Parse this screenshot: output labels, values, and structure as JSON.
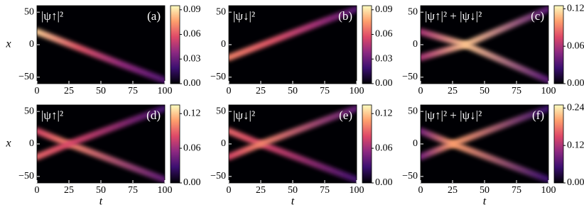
{
  "chart_data": [
    {
      "type": "heatmap",
      "label": "(a)",
      "formula": "|ψ↑|²",
      "ylabel": "x",
      "xlim": [
        0,
        100
      ],
      "xticks": [
        0,
        25,
        50,
        75,
        100
      ],
      "ylim": [
        -60,
        60
      ],
      "yticks": [
        {
          "value": -50,
          "label": "−50"
        },
        0,
        50
      ],
      "clim": [
        0,
        0.095
      ],
      "cticks": [
        {
          "value": 0,
          "label": "0.00"
        },
        {
          "value": 0.03,
          "label": "0.03"
        },
        {
          "value": 0.06,
          "label": "0.06"
        },
        {
          "value": 0.09,
          "label": "0.09"
        }
      ],
      "colormap": [
        "#000004",
        "#3b0f70",
        "#8c2981",
        "#de4968",
        "#fe9f6d",
        "#fcfdbf"
      ],
      "beams": [
        {
          "t": [
            0,
            33,
            66,
            100
          ],
          "x": [
            20,
            -5,
            -30,
            -55
          ],
          "values": [
            0.085,
            0.06,
            0.04,
            0.025
          ]
        }
      ]
    },
    {
      "type": "heatmap",
      "label": "(b)",
      "formula": "|ψ↓|²",
      "xlim": [
        0,
        100
      ],
      "xticks": [
        0,
        25,
        50,
        75,
        100
      ],
      "ylim": [
        -60,
        60
      ],
      "yticks": [
        {
          "value": -50,
          "label": "−50"
        },
        0,
        50
      ],
      "clim": [
        0,
        0.095
      ],
      "cticks": [
        {
          "value": 0,
          "label": "0.00"
        },
        {
          "value": 0.03,
          "label": "0.03"
        },
        {
          "value": 0.06,
          "label": "0.06"
        },
        {
          "value": 0.09,
          "label": "0.09"
        }
      ],
      "colormap": [
        "#000004",
        "#3b0f70",
        "#8c2981",
        "#de4968",
        "#fe9f6d",
        "#fcfdbf"
      ],
      "beams": [
        {
          "t": [
            0,
            33,
            66,
            100
          ],
          "x": [
            -20,
            5,
            30,
            55
          ],
          "values": [
            0.07,
            0.06,
            0.045,
            0.025
          ]
        }
      ]
    },
    {
      "type": "heatmap",
      "label": "(c)",
      "formula": "|ψ↑|² + |ψ↓|²",
      "xlim": [
        0,
        100
      ],
      "xticks": [
        0,
        25,
        50,
        75,
        100
      ],
      "ylim": [
        -60,
        60
      ],
      "yticks": [
        {
          "value": -50,
          "label": "−50"
        },
        0,
        50
      ],
      "clim": [
        0,
        0.125
      ],
      "cticks": [
        {
          "value": 0,
          "label": "0.00"
        },
        {
          "value": 0.06,
          "label": "0.06"
        },
        {
          "value": 0.12,
          "label": "0.12"
        }
      ],
      "colormap": [
        "#000004",
        "#3b0f70",
        "#8c2981",
        "#de4968",
        "#fe9f6d",
        "#fcfdbf"
      ],
      "beams": [
        {
          "t": [
            0,
            35,
            100
          ],
          "x": [
            20,
            0,
            55
          ],
          "values": [
            0.06,
            0.11,
            0.035
          ]
        },
        {
          "t": [
            0,
            35,
            100
          ],
          "x": [
            -20,
            0,
            -55
          ],
          "values": [
            0.06,
            0.11,
            0.035
          ]
        }
      ]
    },
    {
      "type": "heatmap",
      "label": "(d)",
      "formula": "|ψ↑|²",
      "ylabel": "x",
      "xlabel": "t",
      "xlim": [
        0,
        100
      ],
      "xticks": [
        0,
        25,
        50,
        75,
        100
      ],
      "ylim": [
        -60,
        60
      ],
      "yticks": [
        {
          "value": -50,
          "label": "−50"
        },
        0,
        50
      ],
      "clim": [
        0,
        0.135
      ],
      "cticks": [
        {
          "value": 0,
          "label": "0.00"
        },
        {
          "value": 0.06,
          "label": "0.06"
        },
        {
          "value": 0.12,
          "label": "0.12"
        }
      ],
      "colormap": [
        "#000004",
        "#3b0f70",
        "#8c2981",
        "#de4968",
        "#fe9f6d",
        "#fcfdbf"
      ],
      "beams": [
        {
          "t": [
            0,
            25,
            100
          ],
          "x": [
            20,
            0,
            -55
          ],
          "values": [
            0.08,
            0.1,
            0.04
          ]
        },
        {
          "t": [
            0,
            25,
            100
          ],
          "x": [
            -20,
            0,
            55
          ],
          "values": [
            0.09,
            0.08,
            0.03
          ]
        }
      ]
    },
    {
      "type": "heatmap",
      "label": "(e)",
      "formula": "|ψ↓|²",
      "xlabel": "t",
      "xlim": [
        0,
        100
      ],
      "xticks": [
        0,
        25,
        50,
        75,
        100
      ],
      "ylim": [
        -60,
        60
      ],
      "yticks": [
        {
          "value": -50,
          "label": "−50"
        },
        0,
        50
      ],
      "clim": [
        0,
        0.135
      ],
      "cticks": [
        {
          "value": 0,
          "label": "0.00"
        },
        {
          "value": 0.06,
          "label": "0.06"
        },
        {
          "value": 0.12,
          "label": "0.12"
        }
      ],
      "colormap": [
        "#000004",
        "#3b0f70",
        "#8c2981",
        "#de4968",
        "#fe9f6d",
        "#fcfdbf"
      ],
      "beams": [
        {
          "t": [
            0,
            25,
            100
          ],
          "x": [
            20,
            0,
            -55
          ],
          "values": [
            0.09,
            0.08,
            0.03
          ]
        },
        {
          "t": [
            0,
            25,
            100
          ],
          "x": [
            -20,
            0,
            55
          ],
          "values": [
            0.08,
            0.1,
            0.04
          ]
        }
      ]
    },
    {
      "type": "heatmap",
      "label": "(f)",
      "formula": "|ψ↑|² + |ψ↓|²",
      "xlabel": "t",
      "xlim": [
        0,
        100
      ],
      "xticks": [
        0,
        25,
        50,
        75,
        100
      ],
      "ylim": [
        -60,
        60
      ],
      "yticks": [
        {
          "value": -50,
          "label": "−50"
        },
        0,
        50
      ],
      "clim": [
        0,
        0.25
      ],
      "cticks": [
        {
          "value": 0,
          "label": "0.00"
        },
        {
          "value": 0.12,
          "label": "0.12"
        },
        {
          "value": 0.24,
          "label": "0.24"
        }
      ],
      "colormap": [
        "#000004",
        "#3b0f70",
        "#8c2981",
        "#de4968",
        "#fe9f6d",
        "#fcfdbf"
      ],
      "beams": [
        {
          "t": [
            0,
            25,
            100
          ],
          "x": [
            20,
            0,
            -55
          ],
          "values": [
            0.09,
            0.2,
            0.05
          ]
        },
        {
          "t": [
            0,
            25,
            100
          ],
          "x": [
            -20,
            0,
            55
          ],
          "values": [
            0.09,
            0.2,
            0.05
          ]
        }
      ]
    }
  ]
}
